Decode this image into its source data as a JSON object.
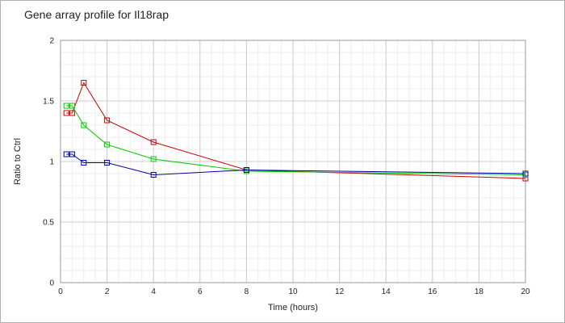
{
  "chart_data": {
    "type": "line",
    "title": "Gene array profile for Il18rap",
    "xlabel": "Time (hours)",
    "ylabel": "Ratio to Ctrl",
    "xlim": [
      0,
      20
    ],
    "ylim": [
      0,
      2
    ],
    "x_ticks": [
      "0",
      "2",
      "4",
      "6",
      "8",
      "10",
      "12",
      "14",
      "16",
      "18",
      "20"
    ],
    "y_ticks": [
      "0",
      "0.5",
      "1",
      "1.5",
      "2"
    ],
    "grid": true,
    "legend": "none",
    "x": [
      0.25,
      0.5,
      1,
      2,
      4,
      8,
      20
    ],
    "series": [
      {
        "color": "#cc0000",
        "values": [
          1.4,
          1.4,
          1.65,
          1.34,
          1.16,
          0.93,
          0.86
        ]
      },
      {
        "color": "#00cc00",
        "values": [
          1.46,
          1.46,
          1.3,
          1.14,
          1.02,
          0.92,
          0.89
        ]
      },
      {
        "color": "#0000aa",
        "values": [
          1.06,
          1.06,
          0.99,
          0.99,
          0.89,
          0.93,
          0.9
        ]
      }
    ]
  }
}
